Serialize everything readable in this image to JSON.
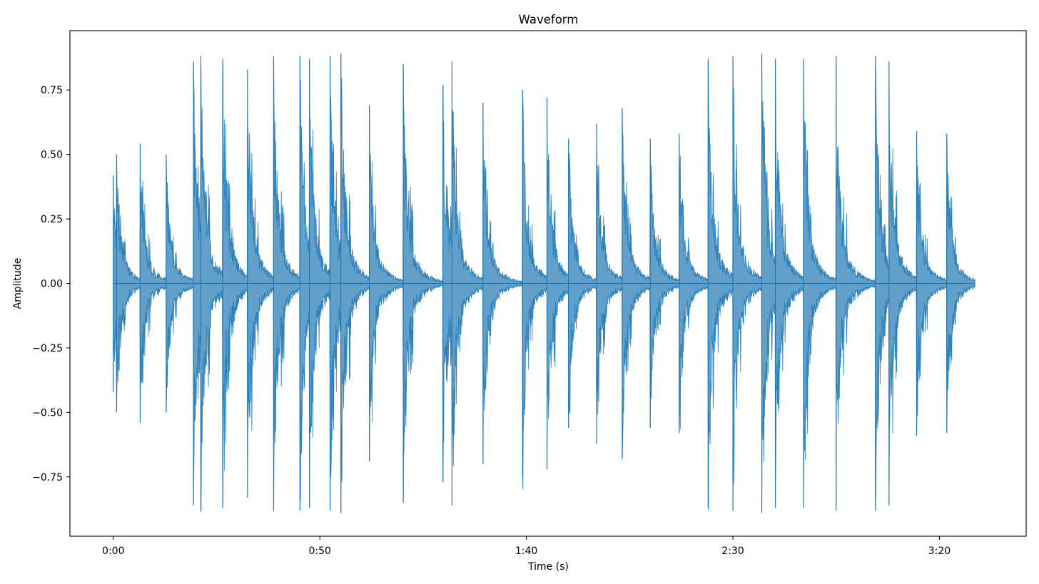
{
  "chart_data": {
    "type": "area",
    "title": "Waveform",
    "xlabel": "Time (s)",
    "ylabel": "Amplitude",
    "xlim": [
      -10.5,
      221
    ],
    "ylim": [
      -0.98,
      0.98
    ],
    "x_ticks": [
      {
        "value": 0,
        "label": "0:00"
      },
      {
        "value": 50,
        "label": "0:50"
      },
      {
        "value": 100,
        "label": "1:40"
      },
      {
        "value": 150,
        "label": "2:30"
      },
      {
        "value": 200,
        "label": "3:20"
      }
    ],
    "y_ticks": [
      {
        "value": 0.75,
        "label": "0.75"
      },
      {
        "value": 0.5,
        "label": "0.50"
      },
      {
        "value": 0.25,
        "label": "0.25"
      },
      {
        "value": 0.0,
        "label": "0.00"
      },
      {
        "value": -0.25,
        "label": "−0.25"
      },
      {
        "value": -0.5,
        "label": "−0.50"
      },
      {
        "value": -0.75,
        "label": "−0.75"
      }
    ],
    "grid": false,
    "series": [
      {
        "color": "#1f77b4",
        "fill_opacity": 0.7,
        "duration_s": 208.6,
        "transients": [
          {
            "t": 0.0,
            "peak": 0.42
          },
          {
            "t": 0.8,
            "peak": 0.5
          },
          {
            "t": 6.5,
            "peak": 0.54
          },
          {
            "t": 12.8,
            "peak": 0.5
          },
          {
            "t": 19.4,
            "peak": 0.86
          },
          {
            "t": 21.2,
            "peak": 0.88
          },
          {
            "t": 26.5,
            "peak": 0.87
          },
          {
            "t": 32.5,
            "peak": 0.83
          },
          {
            "t": 38.8,
            "peak": 0.88
          },
          {
            "t": 45.2,
            "peak": 0.88
          },
          {
            "t": 47.5,
            "peak": 0.87
          },
          {
            "t": 52.5,
            "peak": 0.88
          },
          {
            "t": 55.1,
            "peak": 0.89
          },
          {
            "t": 62.0,
            "peak": 0.69
          },
          {
            "t": 70.2,
            "peak": 0.85
          },
          {
            "t": 79.8,
            "peak": 0.77
          },
          {
            "t": 82.0,
            "peak": 0.86
          },
          {
            "t": 89.5,
            "peak": 0.7
          },
          {
            "t": 99.1,
            "peak": 0.75
          },
          {
            "t": 105.0,
            "peak": 0.72
          },
          {
            "t": 110.2,
            "peak": 0.56
          },
          {
            "t": 117.0,
            "peak": 0.62
          },
          {
            "t": 123.2,
            "peak": 0.68
          },
          {
            "t": 130.0,
            "peak": 0.56
          },
          {
            "t": 137.0,
            "peak": 0.58
          },
          {
            "t": 144.0,
            "peak": 0.87
          },
          {
            "t": 150.0,
            "peak": 0.88
          },
          {
            "t": 157.0,
            "peak": 0.89
          },
          {
            "t": 160.3,
            "peak": 0.87
          },
          {
            "t": 167.1,
            "peak": 0.87
          },
          {
            "t": 175.0,
            "peak": 0.88
          },
          {
            "t": 184.5,
            "peak": 0.88
          },
          {
            "t": 187.8,
            "peak": 0.86
          },
          {
            "t": 194.5,
            "peak": 0.59
          },
          {
            "t": 201.8,
            "peak": 0.58
          }
        ]
      }
    ]
  }
}
